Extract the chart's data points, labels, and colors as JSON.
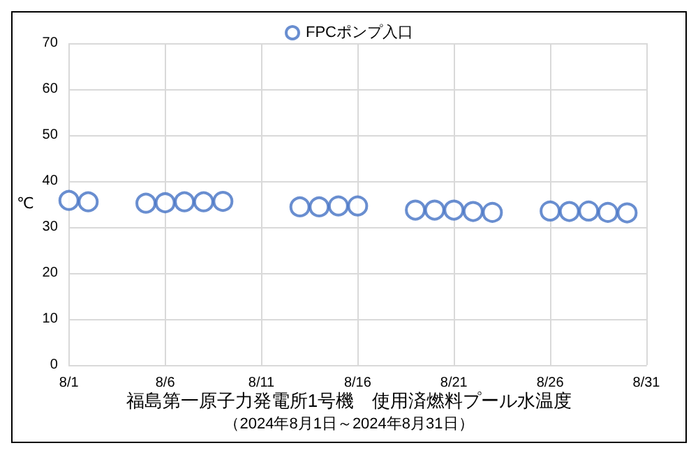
{
  "chart_data": {
    "type": "scatter",
    "title": "福島第一原子力発電所1号機　使用済燃料プール水温度",
    "subtitle": "（2024年8月1日～2024年8月31日）",
    "ylabel": "℃",
    "x": [
      "--08-01",
      "--08-02",
      "--08-05",
      "--08-06",
      "--08-07",
      "--08-08",
      "--08-09",
      "--08-13",
      "--08-14",
      "--08-15",
      "--08-16",
      "--08-19",
      "--08-20",
      "--08-21",
      "--08-22",
      "--08-23",
      "--08-26",
      "--08-27",
      "--08-28",
      "--08-29",
      "--08-30"
    ],
    "series": [
      {
        "name": "FPCポンプ入口",
        "color": "#4472c4",
        "values": [
          35.8,
          35.5,
          35.2,
          35.3,
          35.5,
          35.5,
          35.6,
          34.4,
          34.4,
          34.6,
          34.6,
          33.7,
          33.7,
          33.7,
          33.4,
          33.2,
          33.5,
          33.4,
          33.5,
          33.2,
          33.1
        ]
      }
    ],
    "xlim": [
      "--08-01",
      "--08-31"
    ],
    "xticks": [
      {
        "value": "--08-01",
        "label": "8/1"
      },
      {
        "value": "--08-06",
        "label": "8/6"
      },
      {
        "value": "--08-11",
        "label": "8/11"
      },
      {
        "value": "--08-16",
        "label": "8/16"
      },
      {
        "value": "--08-21",
        "label": "8/21"
      },
      {
        "value": "--08-26",
        "label": "8/26"
      },
      {
        "value": "--08-31",
        "label": "8/31"
      }
    ],
    "ylim": [
      0,
      70
    ],
    "yticks": [
      0,
      10,
      20,
      30,
      40,
      50,
      60,
      70
    ],
    "grid": true,
    "legend": "top",
    "marker": "circle"
  }
}
